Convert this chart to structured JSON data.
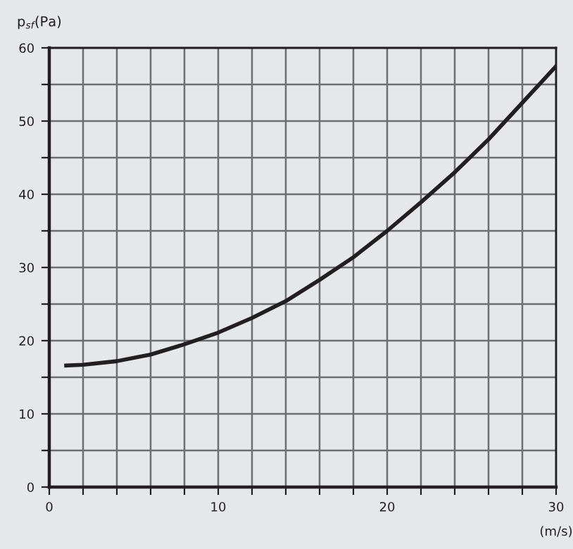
{
  "chart_data": {
    "type": "line",
    "ylabel": "p$_{sf}$(Pa)",
    "xlabel": "(m/s)",
    "x": [
      1,
      2,
      4,
      6,
      8,
      10,
      12,
      14,
      16,
      18,
      20,
      22,
      24,
      26,
      28,
      30
    ],
    "series": [
      {
        "color": "#231f20",
        "values": [
          16.6,
          16.7,
          17.2,
          18.1,
          19.5,
          21.1,
          23.1,
          25.4,
          28.3,
          31.4,
          35.0,
          38.9,
          43.0,
          47.5,
          52.5,
          57.5
        ]
      }
    ],
    "xlim": [
      0,
      30
    ],
    "ylim": [
      0,
      60
    ],
    "xticks": [
      0,
      {
        "value": 2,
        "label": null
      },
      {
        "value": 4,
        "label": null
      },
      {
        "value": 6,
        "label": null
      },
      {
        "value": 8,
        "label": null
      },
      10,
      {
        "value": 12,
        "label": null
      },
      {
        "value": 14,
        "label": null
      },
      {
        "value": 16,
        "label": null
      },
      {
        "value": 18,
        "label": null
      },
      20,
      {
        "value": 22,
        "label": null
      },
      {
        "value": 24,
        "label": null
      },
      {
        "value": 26,
        "label": null
      },
      {
        "value": 28,
        "label": null
      },
      30
    ],
    "yticks": [
      0,
      {
        "value": 5,
        "label": null
      },
      10,
      {
        "value": 15,
        "label": null
      },
      20,
      {
        "value": 25,
        "label": null
      },
      30,
      {
        "value": 35,
        "label": null
      },
      40,
      {
        "value": 45,
        "label": null
      },
      50,
      {
        "value": 55,
        "label": null
      },
      60
    ],
    "grid": true,
    "marker": "none",
    "line_style": "solid"
  }
}
